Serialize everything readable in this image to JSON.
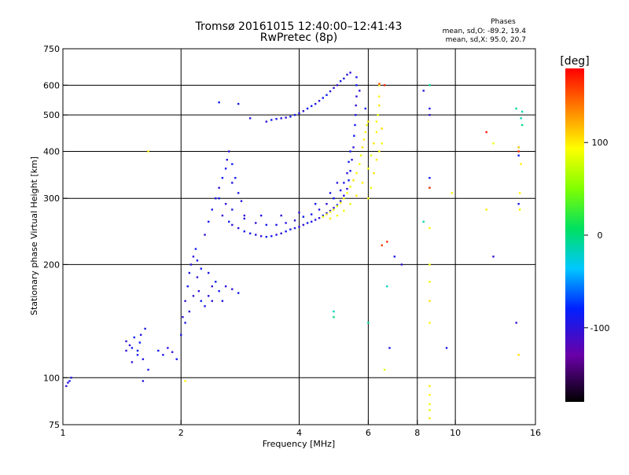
{
  "header": {
    "title_line1": "Tromsø 20161015 12:40:00–12:41:43",
    "title_line2": "RwPretec (8p)",
    "phases_title": "Phases",
    "phases_line1": "mean, sd,O: -89.2, 19.4",
    "phases_line2": "mean, sd,X:  95.0, 20.7"
  },
  "colorbar": {
    "label": "[deg]",
    "ticks": [
      {
        "value": 100,
        "label": "100"
      },
      {
        "value": 0,
        "label": "0"
      },
      {
        "value": -100,
        "label": "-100"
      }
    ],
    "range": [
      -180,
      180
    ]
  },
  "chart_data": {
    "type": "scatter",
    "title": "Tromsø 20161015 12:40:00–12:41:43",
    "subtitle": "RwPretec (8p)",
    "xlabel": "Frequency [MHz]",
    "ylabel": "Stationary phase Virtual Height [km]",
    "xscale": "log",
    "yscale": "log",
    "xlim": [
      1,
      16
    ],
    "ylim": [
      75,
      750
    ],
    "x_ticks": [
      {
        "value": 1,
        "label": "1"
      },
      {
        "value": 2,
        "label": "2"
      },
      {
        "value": 4,
        "label": "4"
      },
      {
        "value": 6,
        "label": "6"
      },
      {
        "value": 8,
        "label": "8"
      },
      {
        "value": 10,
        "label": "10"
      },
      {
        "value": 16,
        "label": "16"
      }
    ],
    "y_ticks": [
      {
        "value": 75,
        "label": "75"
      },
      {
        "value": 100,
        "label": "100"
      },
      {
        "value": 200,
        "label": "200"
      },
      {
        "value": 300,
        "label": "300"
      },
      {
        "value": 400,
        "label": "400"
      },
      {
        "value": 500,
        "label": "500"
      },
      {
        "value": 600,
        "label": "600"
      },
      {
        "value": 750,
        "label": "750"
      }
    ],
    "x_gridlines": [
      2,
      4,
      6,
      8,
      10
    ],
    "y_gridlines": [
      100,
      200,
      300,
      400,
      500,
      600
    ],
    "colorscale": "rainbow (phase, deg)",
    "series": [
      {
        "name": "",
        "phase_deg": -95,
        "points": [
          [
            1.02,
            95
          ],
          [
            1.04,
            98
          ],
          [
            1.05,
            100
          ],
          [
            1.03,
            97
          ],
          [
            1.45,
            125
          ],
          [
            1.5,
            120
          ],
          [
            1.55,
            115
          ],
          [
            1.6,
            112
          ],
          [
            1.5,
            110
          ],
          [
            1.55,
            118
          ],
          [
            1.62,
            135
          ],
          [
            1.58,
            130
          ],
          [
            1.45,
            118
          ],
          [
            1.52,
            128
          ],
          [
            1.65,
            105
          ],
          [
            1.6,
            98
          ],
          [
            1.48,
            122
          ],
          [
            1.57,
            124
          ],
          [
            1.75,
            118
          ],
          [
            1.8,
            115
          ],
          [
            1.85,
            120
          ],
          [
            1.9,
            117
          ],
          [
            1.95,
            112
          ],
          [
            2.0,
            130
          ],
          [
            2.02,
            145
          ],
          [
            2.05,
            160
          ],
          [
            2.08,
            175
          ],
          [
            2.1,
            190
          ],
          [
            2.12,
            200
          ],
          [
            2.15,
            210
          ],
          [
            2.18,
            220
          ],
          [
            2.2,
            205
          ],
          [
            2.2,
            185
          ],
          [
            2.22,
            170
          ],
          [
            2.25,
            160
          ],
          [
            2.3,
            155
          ],
          [
            2.35,
            165
          ],
          [
            2.4,
            175
          ],
          [
            2.45,
            180
          ],
          [
            2.5,
            170
          ],
          [
            2.55,
            160
          ],
          [
            2.6,
            175
          ],
          [
            2.7,
            172
          ],
          [
            2.8,
            168
          ],
          [
            2.05,
            140
          ],
          [
            2.1,
            150
          ],
          [
            2.15,
            165
          ],
          [
            2.25,
            195
          ],
          [
            2.35,
            190
          ],
          [
            2.4,
            160
          ],
          [
            2.3,
            240
          ],
          [
            2.35,
            260
          ],
          [
            2.4,
            280
          ],
          [
            2.45,
            300
          ],
          [
            2.5,
            320
          ],
          [
            2.55,
            340
          ],
          [
            2.6,
            360
          ],
          [
            2.62,
            380
          ],
          [
            2.65,
            400
          ],
          [
            2.7,
            370
          ],
          [
            2.75,
            340
          ],
          [
            2.8,
            310
          ],
          [
            2.6,
            290
          ],
          [
            2.55,
            270
          ],
          [
            2.65,
            260
          ],
          [
            2.7,
            280
          ],
          [
            2.85,
            295
          ],
          [
            2.9,
            270
          ],
          [
            2.5,
            300
          ],
          [
            2.7,
            330
          ],
          [
            2.7,
            255
          ],
          [
            2.8,
            250
          ],
          [
            2.9,
            245
          ],
          [
            3.0,
            242
          ],
          [
            3.1,
            240
          ],
          [
            3.2,
            238
          ],
          [
            3.3,
            237
          ],
          [
            3.4,
            238
          ],
          [
            3.5,
            240
          ],
          [
            3.6,
            242
          ],
          [
            3.7,
            245
          ],
          [
            3.8,
            248
          ],
          [
            3.9,
            250
          ],
          [
            4.0,
            252
          ],
          [
            4.1,
            255
          ],
          [
            4.2,
            258
          ],
          [
            4.3,
            260
          ],
          [
            4.4,
            263
          ],
          [
            4.5,
            266
          ],
          [
            4.6,
            270
          ],
          [
            4.7,
            274
          ],
          [
            4.8,
            278
          ],
          [
            4.9,
            283
          ],
          [
            5.0,
            288
          ],
          [
            5.1,
            295
          ],
          [
            5.2,
            305
          ],
          [
            5.3,
            318
          ],
          [
            5.35,
            335
          ],
          [
            5.4,
            355
          ],
          [
            5.45,
            380
          ],
          [
            5.5,
            410
          ],
          [
            5.52,
            440
          ],
          [
            5.55,
            470
          ],
          [
            5.57,
            500
          ],
          [
            5.58,
            530
          ],
          [
            5.6,
            560
          ],
          [
            5.6,
            600
          ],
          [
            5.6,
            630
          ],
          [
            2.9,
            265
          ],
          [
            3.1,
            258
          ],
          [
            3.3,
            255
          ],
          [
            3.5,
            255
          ],
          [
            3.7,
            258
          ],
          [
            3.9,
            262
          ],
          [
            4.1,
            268
          ],
          [
            4.3,
            272
          ],
          [
            4.5,
            280
          ],
          [
            4.7,
            290
          ],
          [
            4.9,
            300
          ],
          [
            5.1,
            315
          ],
          [
            5.2,
            330
          ],
          [
            5.3,
            350
          ],
          [
            5.35,
            375
          ],
          [
            5.4,
            400
          ],
          [
            3.2,
            270
          ],
          [
            3.6,
            270
          ],
          [
            4.0,
            275
          ],
          [
            4.4,
            290
          ],
          [
            4.8,
            310
          ],
          [
            5.0,
            330
          ],
          [
            3.3,
            480
          ],
          [
            3.4,
            485
          ],
          [
            3.5,
            488
          ],
          [
            3.6,
            490
          ],
          [
            3.7,
            492
          ],
          [
            3.8,
            495
          ],
          [
            3.9,
            500
          ],
          [
            4.0,
            505
          ],
          [
            4.1,
            512
          ],
          [
            4.2,
            520
          ],
          [
            4.3,
            528
          ],
          [
            4.4,
            535
          ],
          [
            4.5,
            545
          ],
          [
            4.6,
            555
          ],
          [
            4.7,
            565
          ],
          [
            4.8,
            578
          ],
          [
            4.9,
            590
          ],
          [
            5.0,
            600
          ],
          [
            5.1,
            615
          ],
          [
            5.2,
            625
          ],
          [
            5.3,
            640
          ],
          [
            5.4,
            648
          ],
          [
            2.5,
            540
          ],
          [
            2.8,
            535
          ],
          [
            3.0,
            490
          ],
          [
            5.7,
            580
          ],
          [
            5.9,
            520
          ],
          [
            8.3,
            580
          ],
          [
            8.6,
            520
          ],
          [
            8.6,
            500
          ],
          [
            8.6,
            340
          ],
          [
            8.6,
            320
          ],
          [
            9.5,
            120
          ],
          [
            12.5,
            210
          ],
          [
            14.5,
            410
          ],
          [
            14.5,
            390
          ],
          [
            14.5,
            290
          ],
          [
            14.3,
            140
          ],
          [
            7.3,
            200
          ],
          [
            7.0,
            210
          ],
          [
            6.8,
            120
          ]
        ]
      },
      {
        "name": "",
        "phase_deg": 95,
        "points": [
          [
            4.6,
            268
          ],
          [
            4.7,
            272
          ],
          [
            4.8,
            276
          ],
          [
            4.9,
            280
          ],
          [
            5.0,
            286
          ],
          [
            5.1,
            292
          ],
          [
            5.2,
            300
          ],
          [
            5.3,
            310
          ],
          [
            5.4,
            322
          ],
          [
            5.5,
            335
          ],
          [
            5.6,
            350
          ],
          [
            5.7,
            370
          ],
          [
            5.75,
            390
          ],
          [
            5.8,
            410
          ],
          [
            5.85,
            430
          ],
          [
            5.9,
            450
          ],
          [
            5.95,
            470
          ],
          [
            6.0,
            480
          ],
          [
            4.8,
            265
          ],
          [
            5.0,
            270
          ],
          [
            5.2,
            278
          ],
          [
            5.4,
            290
          ],
          [
            5.6,
            305
          ],
          [
            5.8,
            330
          ],
          [
            6.0,
            360
          ],
          [
            6.1,
            390
          ],
          [
            6.2,
            420
          ],
          [
            6.3,
            450
          ],
          [
            6.3,
            480
          ],
          [
            6.35,
            500
          ],
          [
            6.4,
            530
          ],
          [
            6.4,
            560
          ],
          [
            6.0,
            300
          ],
          [
            6.1,
            320
          ],
          [
            6.2,
            350
          ],
          [
            6.3,
            380
          ],
          [
            6.4,
            400
          ],
          [
            6.5,
            420
          ],
          [
            6.5,
            460
          ],
          [
            1.65,
            400
          ],
          [
            2.05,
            98
          ],
          [
            6.4,
            600
          ],
          [
            6.6,
            105
          ],
          [
            8.6,
            95
          ],
          [
            8.6,
            90
          ],
          [
            8.6,
            85
          ],
          [
            8.6,
            82
          ],
          [
            8.6,
            78
          ],
          [
            8.6,
            250
          ],
          [
            8.6,
            200
          ],
          [
            8.6,
            180
          ],
          [
            8.6,
            160
          ],
          [
            8.6,
            140
          ],
          [
            9.8,
            310
          ],
          [
            12.5,
            420
          ],
          [
            14.5,
            410
          ],
          [
            14.7,
            370
          ],
          [
            14.6,
            310
          ],
          [
            14.6,
            280
          ],
          [
            14.5,
            115
          ],
          [
            12.0,
            280
          ]
        ]
      },
      {
        "name": "",
        "phase_deg": -10,
        "points": [
          [
            4.9,
            150
          ],
          [
            4.9,
            145
          ],
          [
            6.0,
            140
          ],
          [
            8.3,
            260
          ],
          [
            6.7,
            175
          ],
          [
            8.6,
            600
          ],
          [
            14.3,
            520
          ],
          [
            14.8,
            510
          ],
          [
            14.7,
            490
          ],
          [
            14.8,
            470
          ]
        ]
      },
      {
        "name": "",
        "phase_deg": 165,
        "points": [
          [
            6.4,
            605
          ],
          [
            6.6,
            600
          ],
          [
            6.7,
            230
          ],
          [
            6.5,
            225
          ],
          [
            8.6,
            320
          ],
          [
            12.0,
            450
          ],
          [
            14.5,
            400
          ]
        ]
      }
    ]
  }
}
